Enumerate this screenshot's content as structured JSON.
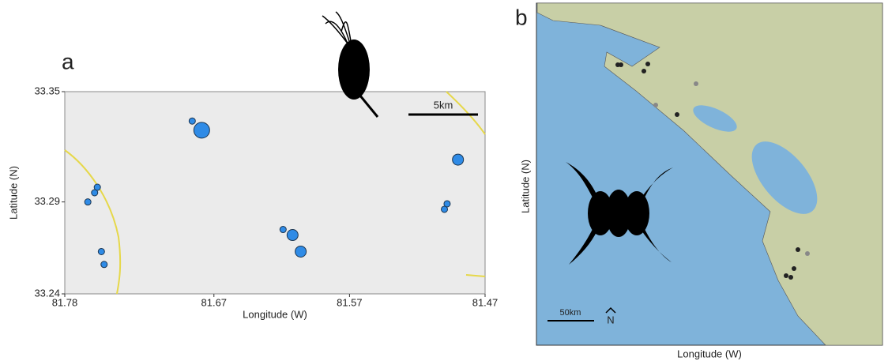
{
  "chart_data": [
    {
      "type": "scatter",
      "panel": "a",
      "xlabel": "Longitude (W)",
      "ylabel": "Latitude (N)",
      "xlim": [
        81.78,
        81.47
      ],
      "ylim": [
        33.24,
        33.35
      ],
      "xticks": [
        81.78,
        81.67,
        81.57,
        81.47
      ],
      "yticks": [
        33.24,
        33.29,
        33.35
      ],
      "scale_label": "5km",
      "color": "#2f8be6",
      "x": [
        81.686,
        81.679,
        81.49,
        81.756,
        81.758,
        81.763,
        81.498,
        81.5,
        81.619,
        81.612,
        81.606,
        81.753,
        81.751
      ],
      "y": [
        33.334,
        33.329,
        33.313,
        33.298,
        33.295,
        33.29,
        33.289,
        33.286,
        33.275,
        33.272,
        33.263,
        33.263,
        33.256
      ],
      "sizes": [
        4,
        10,
        7,
        4,
        4,
        4,
        4,
        4,
        4,
        7,
        7,
        4,
        4
      ]
    }
  ],
  "map_b": {
    "panel": "b",
    "xlabel": "Longitude (W)",
    "ylabel": "Latitude (N)",
    "scale_label": "50km",
    "north_label": "N"
  }
}
